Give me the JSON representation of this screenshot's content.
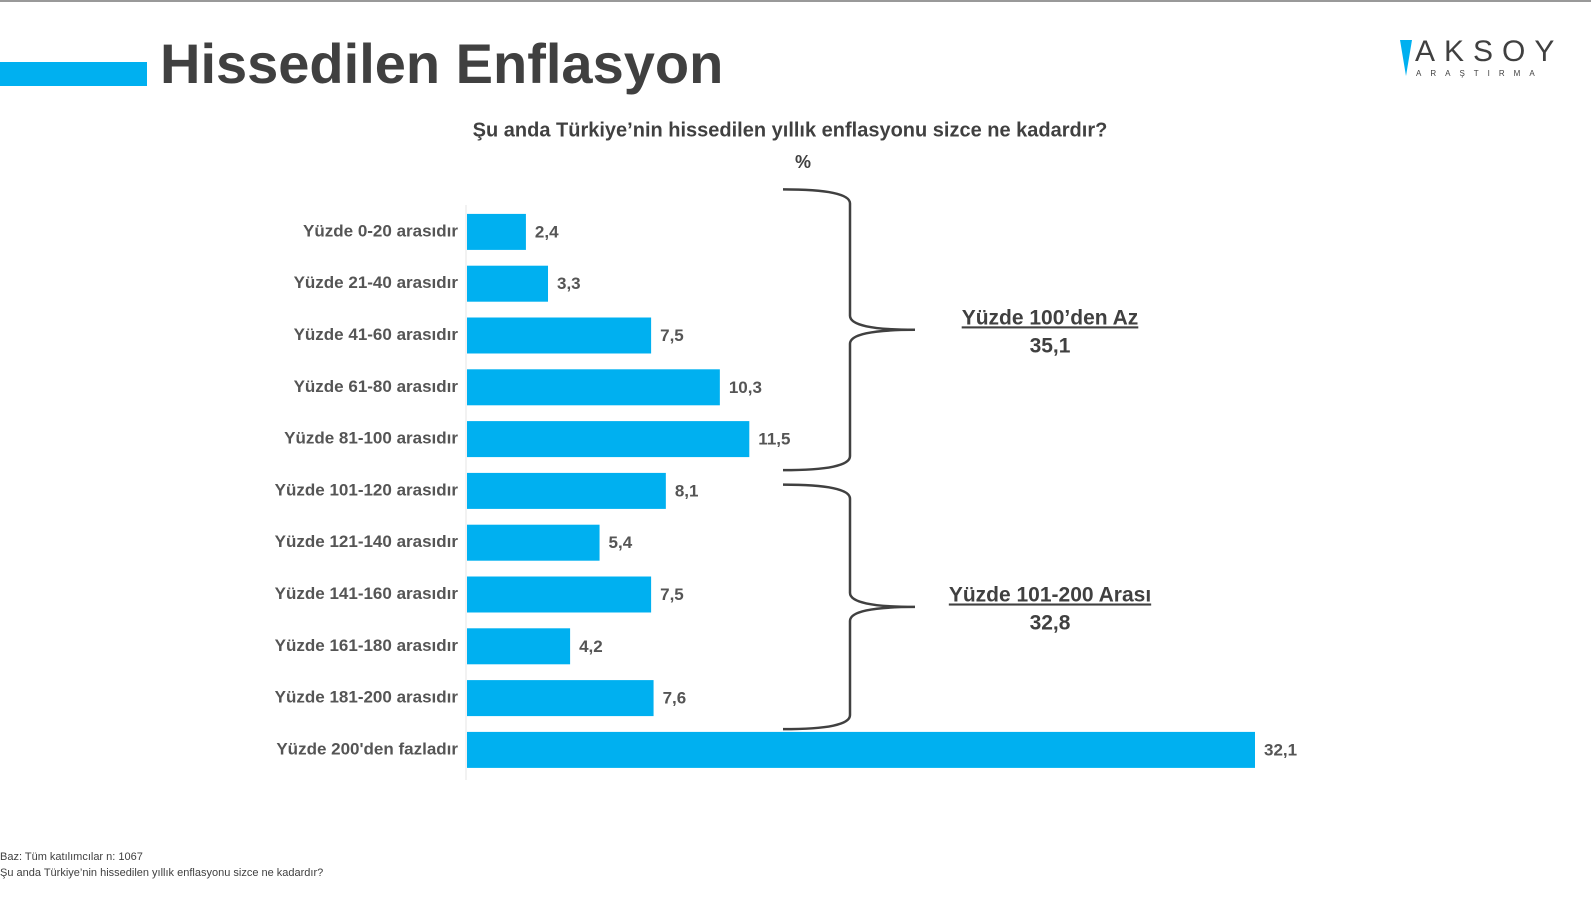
{
  "chart_data": {
    "type": "bar",
    "orientation": "horizontal",
    "title": "Hissedilen Enflasyon",
    "subtitle": "Şu anda Türkiye’nin hissedilen yıllık enflasyonu sizce ne kadardır?",
    "unit": "%",
    "categories": [
      "Yüzde 0-20 arasıdır",
      "Yüzde 21-40 arasıdır",
      "Yüzde 41-60 arasıdır",
      "Yüzde 61-80 arasıdır",
      "Yüzde 81-100 arasıdır",
      "Yüzde 101-120 arasıdır",
      "Yüzde 121-140 arasıdır",
      "Yüzde 141-160 arasıdır",
      "Yüzde 161-180 arasıdır",
      "Yüzde 181-200 arasıdır",
      "Yüzde 200'den fazladır"
    ],
    "values": [
      2.4,
      3.3,
      7.5,
      10.3,
      11.5,
      8.1,
      5.4,
      7.5,
      4.2,
      7.6,
      32.1
    ],
    "value_labels": [
      "2,4",
      "3,3",
      "7,5",
      "10,3",
      "11,5",
      "8,1",
      "5,4",
      "7,5",
      "4,2",
      "7,6",
      "32,1"
    ],
    "color": "#00b0f0",
    "annotations": [
      {
        "text": "Yüzde 100’den Az",
        "value": 35.1,
        "value_label": "35,1"
      },
      {
        "text": "Yüzde 101-200 Arası",
        "value": 32.8,
        "value_label": "32,8"
      }
    ]
  },
  "logo": {
    "name": "AKSOY",
    "tagline": "ARAŞTIRMA"
  },
  "footer": {
    "base": "Baz: Tüm katılımcılar n: 1067",
    "question": "Şu anda Türkiye’nin hissedilen yıllık enflasyonu sizce ne kadardır?"
  }
}
